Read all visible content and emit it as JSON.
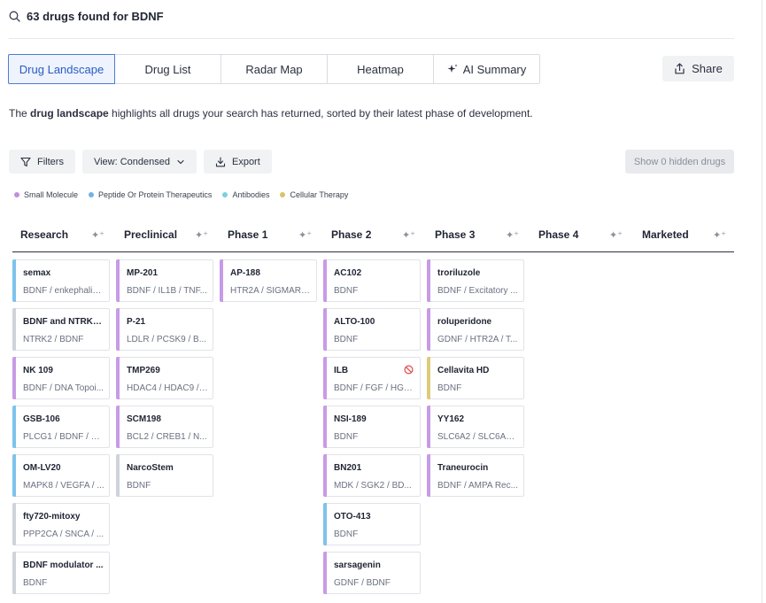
{
  "search": {
    "result_text": "63 drugs found for BDNF"
  },
  "tabs": [
    {
      "label": "Drug Landscape",
      "active": true
    },
    {
      "label": "Drug List"
    },
    {
      "label": "Radar Map"
    },
    {
      "label": "Heatmap"
    },
    {
      "label": "AI Summary",
      "icon": "sparkle-icon"
    }
  ],
  "share": {
    "label": "Share"
  },
  "description": {
    "prefix": "The ",
    "bold": "drug landscape",
    "suffix": " highlights all drugs your search has returned, sorted by their latest phase of development."
  },
  "toolbar": {
    "filters_label": "Filters",
    "view_label": "View: Condensed",
    "export_label": "Export",
    "hidden_label": "Show 0 hidden drugs"
  },
  "legend": [
    {
      "label": "Small Molecule",
      "color": "#c18ee0"
    },
    {
      "label": "Peptide Or Protein Therapeutics",
      "color": "#6fb3e8"
    },
    {
      "label": "Antibodies",
      "color": "#7ccfe0"
    },
    {
      "label": "Cellular Therapy",
      "color": "#d8c46a"
    }
  ],
  "colors": {
    "small_molecule": "#c89be6",
    "peptide": "#7ec3ec",
    "unknown": "#cfd3da",
    "cellular": "#dccb7a",
    "accent": "#2a5bc4"
  },
  "columns": [
    {
      "label": "Research"
    },
    {
      "label": "Preclinical"
    },
    {
      "label": "Phase 1"
    },
    {
      "label": "Phase 2"
    },
    {
      "label": "Phase 3"
    },
    {
      "label": "Phase 4"
    },
    {
      "label": "Marketed"
    }
  ],
  "cards": [
    [
      {
        "name": "semax",
        "targets": "BDNF / enkephalin...",
        "type": "peptide"
      },
      {
        "name": "BDNF and NTRK2...",
        "targets": "NTRK2 / BDNF",
        "type": "unknown"
      },
      {
        "name": "NK 109",
        "targets": "BDNF / DNA Topoi...",
        "type": "small_molecule"
      },
      {
        "name": "GSB-106",
        "targets": "PLCG1 / BDNF / M...",
        "type": "peptide"
      },
      {
        "name": "OM-LV20",
        "targets": "MAPK8 / VEGFA / ...",
        "type": "peptide"
      },
      {
        "name": "fty720-mitoxy",
        "targets": "PPP2CA / SNCA / ...",
        "type": "unknown"
      },
      {
        "name": "BDNF modulator ...",
        "targets": "BDNF",
        "type": "unknown"
      }
    ],
    [
      {
        "name": "MP-201",
        "targets": "BDNF / IL1B / TNF...",
        "type": "small_molecule"
      },
      {
        "name": "P-21",
        "targets": "LDLR / PCSK9 / B...",
        "type": "small_molecule"
      },
      {
        "name": "TMP269",
        "targets": "HDAC4 / HDAC9 / ...",
        "type": "small_molecule"
      },
      {
        "name": "SCM198",
        "targets": "BCL2 / CREB1 / N...",
        "type": "small_molecule"
      },
      {
        "name": "NarcoStem",
        "targets": "BDNF",
        "type": "unknown"
      }
    ],
    [
      {
        "name": "AP-188",
        "targets": "HTR2A / SIGMAR1...",
        "type": "small_molecule"
      }
    ],
    [
      {
        "name": "AC102",
        "targets": "BDNF",
        "type": "small_molecule"
      },
      {
        "name": "ALTO-100",
        "targets": "BDNF",
        "type": "small_molecule"
      },
      {
        "name": "ILB",
        "targets": "BDNF / FGF / HGF ...",
        "type": "small_molecule",
        "discontinued": true
      },
      {
        "name": "NSI-189",
        "targets": "BDNF",
        "type": "small_molecule"
      },
      {
        "name": "BN201",
        "targets": "MDK / SGK2 / BD...",
        "type": "small_molecule"
      },
      {
        "name": "OTO-413",
        "targets": "BDNF",
        "type": "peptide"
      },
      {
        "name": "sarsagenin",
        "targets": "GDNF / BDNF",
        "type": "small_molecule"
      }
    ],
    [
      {
        "name": "troriluzole",
        "targets": "BDNF / Excitatory ...",
        "type": "small_molecule"
      },
      {
        "name": "roluperidone",
        "targets": "GDNF / HTR2A / T...",
        "type": "small_molecule"
      },
      {
        "name": "Cellavita HD",
        "targets": "BDNF",
        "type": "cellular"
      },
      {
        "name": "YY162",
        "targets": "SLC6A2 / SLC6A3 ...",
        "type": "small_molecule"
      },
      {
        "name": "Traneurocin",
        "targets": "BDNF / AMPA Rec...",
        "type": "small_molecule"
      }
    ],
    [],
    []
  ]
}
